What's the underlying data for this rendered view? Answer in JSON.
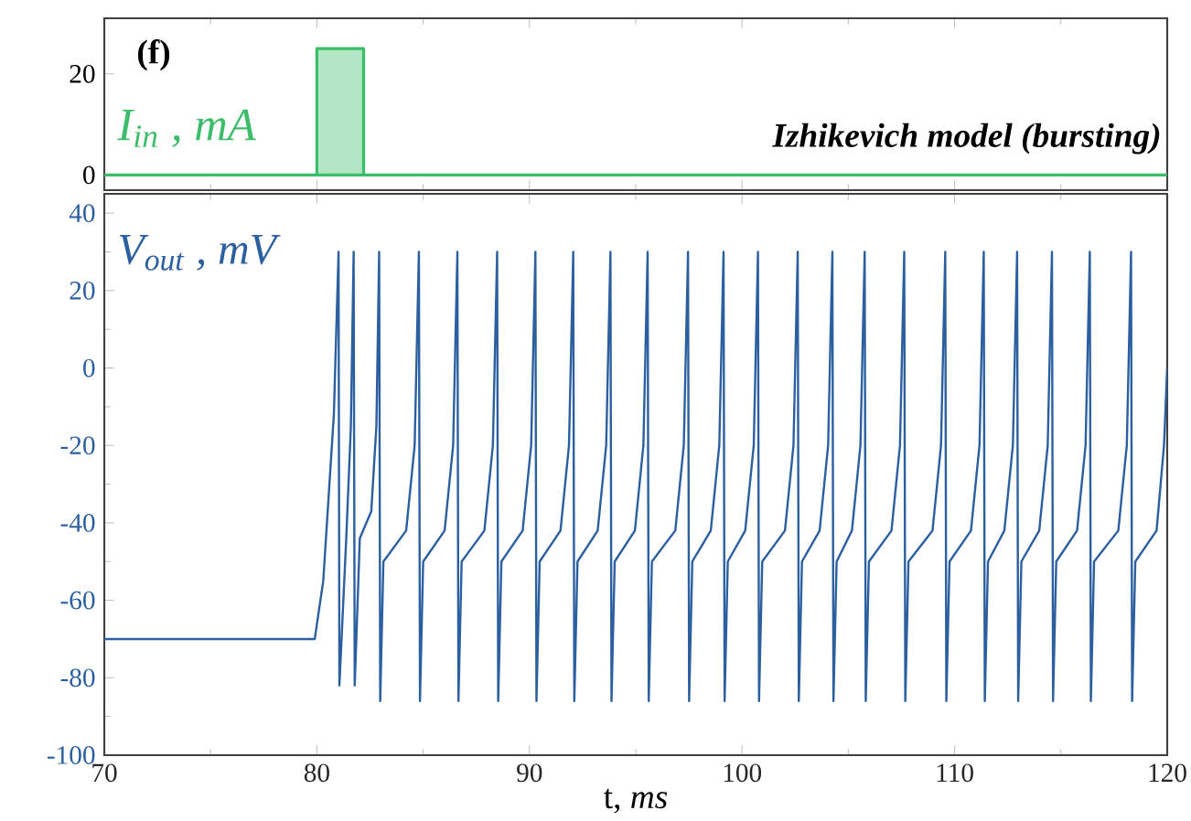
{
  "chart_data": [
    {
      "type": "area",
      "ylabel": "I$_{in}$ , mA",
      "annotations": [
        "(f)",
        "Izhikevich model (bursting)"
      ],
      "series": [
        {
          "color": "#3dbd6a",
          "x": [
            70,
            80,
            80,
            82.2,
            82.2,
            120
          ],
          "values": [
            0,
            0,
            25,
            25,
            0,
            0
          ]
        }
      ],
      "xlim": [
        70,
        120
      ],
      "ylim": [
        -3,
        31
      ],
      "xticks": [
        70,
        80,
        90,
        100,
        110,
        120
      ],
      "yticks": [
        0,
        20
      ],
      "tick_labels": "y",
      "marker": "none"
    },
    {
      "type": "line",
      "xlabel": "t, *ms*",
      "ylabel": "V$_{out}$ , mV",
      "series": [
        {
          "color": "#2b5fa0",
          "x": [
            70,
            79.9,
            80.3,
            80.8,
            81.02,
            81.06,
            81.39,
            81.6,
            81.73,
            81.78,
            82.02,
            82.56,
            82.8,
            82.93,
            82.98,
            83.13,
            84.2,
            84.6,
            84.8,
            84.85,
            85.0,
            86.01,
            86.41,
            86.61,
            86.66,
            86.81,
            87.88,
            88.28,
            88.48,
            88.53,
            88.68,
            89.68,
            90.08,
            90.28,
            90.33,
            90.48,
            91.46,
            91.86,
            92.06,
            92.11,
            92.26,
            93.21,
            93.61,
            93.81,
            93.86,
            94.01,
            94.96,
            95.36,
            95.56,
            95.61,
            95.76,
            96.86,
            97.26,
            97.46,
            97.51,
            97.66,
            98.53,
            98.93,
            99.13,
            99.18,
            99.33,
            100.15,
            100.55,
            100.75,
            100.8,
            100.95,
            102.02,
            102.42,
            102.62,
            102.67,
            102.82,
            103.65,
            104.05,
            104.25,
            104.3,
            104.45,
            105.17,
            105.57,
            105.77,
            105.82,
            105.97,
            107.03,
            107.43,
            107.63,
            107.68,
            107.83,
            108.96,
            109.36,
            109.56,
            109.61,
            109.76,
            110.77,
            111.17,
            111.37,
            111.42,
            111.57,
            112.34,
            112.74,
            112.94,
            112.99,
            113.14,
            113.98,
            114.38,
            114.58,
            114.63,
            114.78,
            115.76,
            116.16,
            116.36,
            116.41,
            116.56,
            117.7,
            118.1,
            118.3,
            118.35,
            118.5,
            119.5,
            119.85,
            120
          ],
          "values": [
            -70,
            -70,
            -55,
            -12,
            30,
            -82,
            -43,
            -15,
            30,
            -82,
            -44,
            -37,
            -15,
            30,
            -86,
            -50,
            -42,
            -20,
            30,
            -86,
            -50,
            -42,
            -20,
            30,
            -86,
            -50,
            -42,
            -20,
            30,
            -86,
            -50,
            -42,
            -20,
            30,
            -86,
            -50,
            -42,
            -20,
            30,
            -86,
            -50,
            -42,
            -20,
            30,
            -86,
            -50,
            -42,
            -20,
            30,
            -86,
            -50,
            -42,
            -20,
            30,
            -86,
            -50,
            -42,
            -20,
            30,
            -86,
            -50,
            -42,
            -20,
            30,
            -86,
            -50,
            -42,
            -20,
            30,
            -86,
            -50,
            -42,
            -20,
            30,
            -86,
            -50,
            -42,
            -20,
            30,
            -86,
            -50,
            -42,
            -20,
            30,
            -86,
            -50,
            -42,
            -20,
            30,
            -86,
            -50,
            -42,
            -20,
            30,
            -86,
            -50,
            -42,
            -20,
            30,
            -86,
            -50,
            -42,
            -20,
            30,
            -86,
            -50,
            -42,
            -20,
            30,
            -86,
            -50,
            -42,
            -20,
            30,
            -86,
            -50,
            -42,
            -20,
            0
          ]
        }
      ],
      "xlim": [
        70,
        120
      ],
      "ylim": [
        -100,
        45
      ],
      "xticks": [
        70,
        80,
        90,
        100,
        110,
        120
      ],
      "yticks": [
        -100,
        -80,
        -60,
        -40,
        -20,
        0,
        20,
        40
      ],
      "marker": "none"
    }
  ]
}
